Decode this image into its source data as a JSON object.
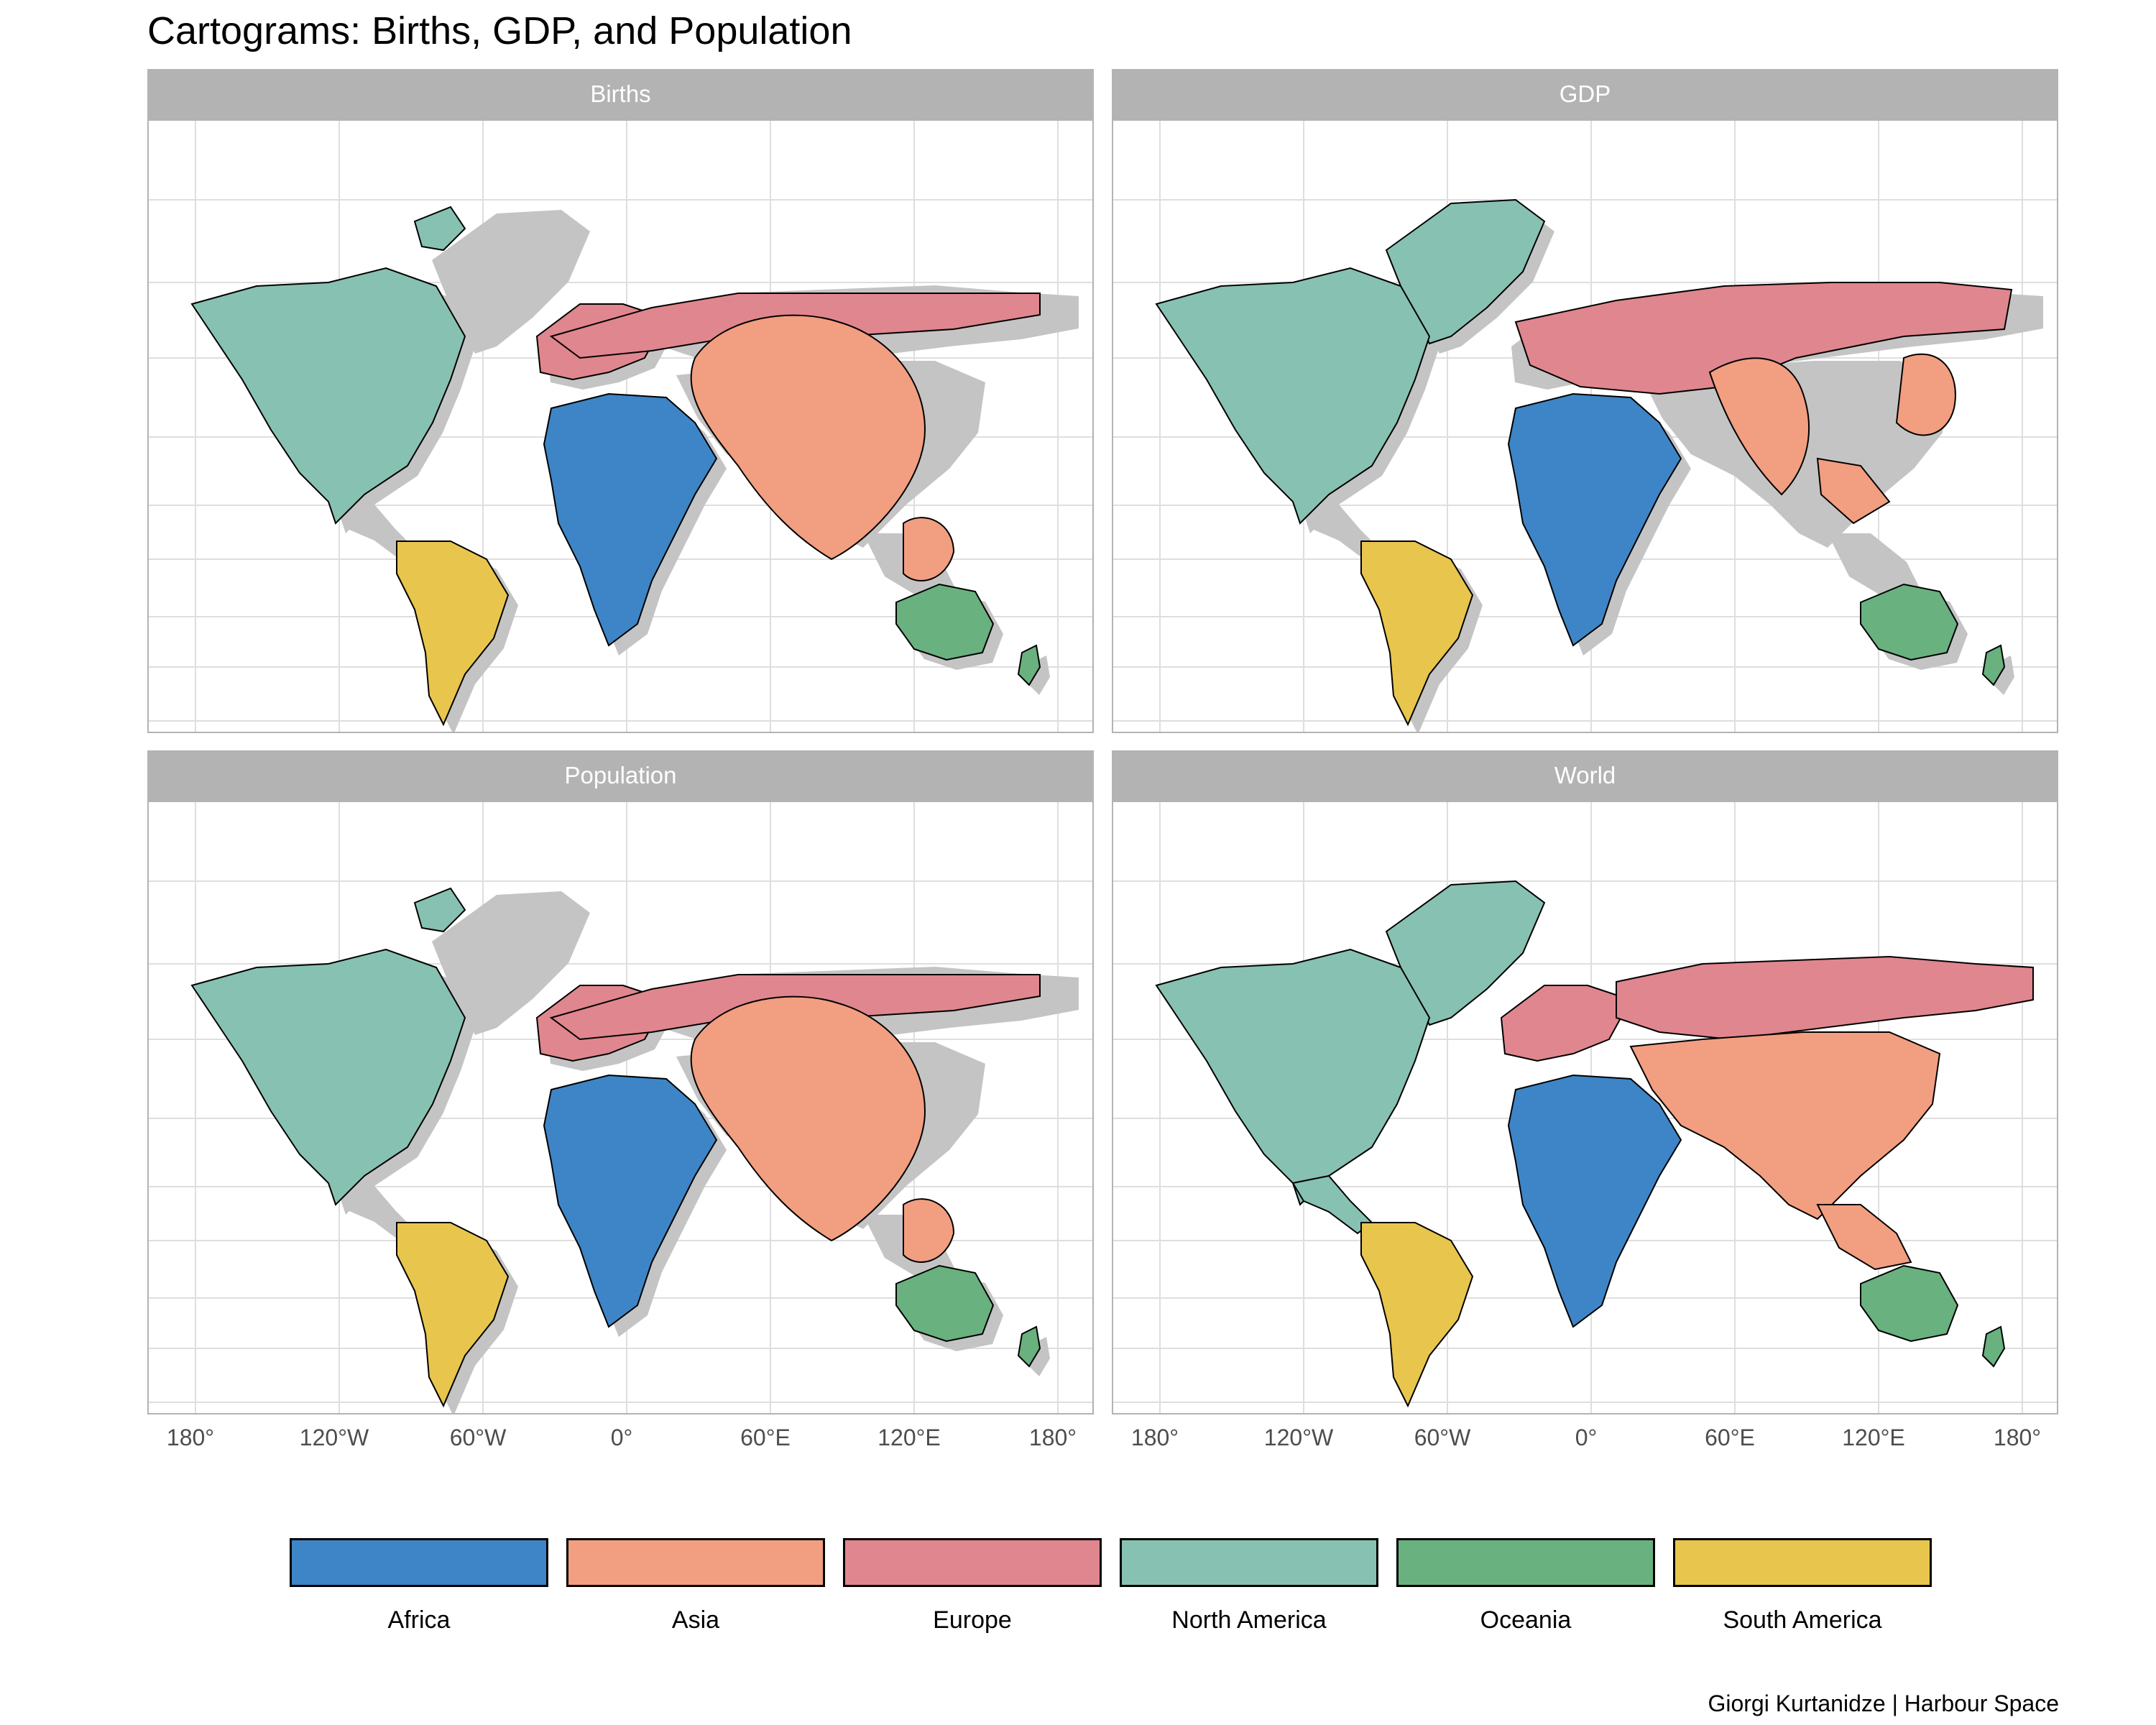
{
  "title": "Cartograms: Births, GDP, and Population",
  "panels": [
    {
      "strip": "Births"
    },
    {
      "strip": "GDP"
    },
    {
      "strip": "Population"
    },
    {
      "strip": "World"
    }
  ],
  "x_ticks": [
    "180°",
    "120°W",
    "60°W",
    "0°",
    "60°E",
    "120°E",
    "180°"
  ],
  "legend": [
    {
      "label": "Africa",
      "color": "#3d85c6"
    },
    {
      "label": "Asia",
      "color": "#f29e81"
    },
    {
      "label": "Europe",
      "color": "#e0868e"
    },
    {
      "label": "North America",
      "color": "#87c1b1"
    },
    {
      "label": "Oceania",
      "color": "#69b17f"
    },
    {
      "label": "South America",
      "color": "#e8c54d"
    }
  ],
  "credit": "Giorgi Kurtanidze | Harbour Space",
  "colors": {
    "strip": "#b3b3b3",
    "grid": "#dedede",
    "baseline_land": "#c4c4c4",
    "outline": "#000000"
  }
}
